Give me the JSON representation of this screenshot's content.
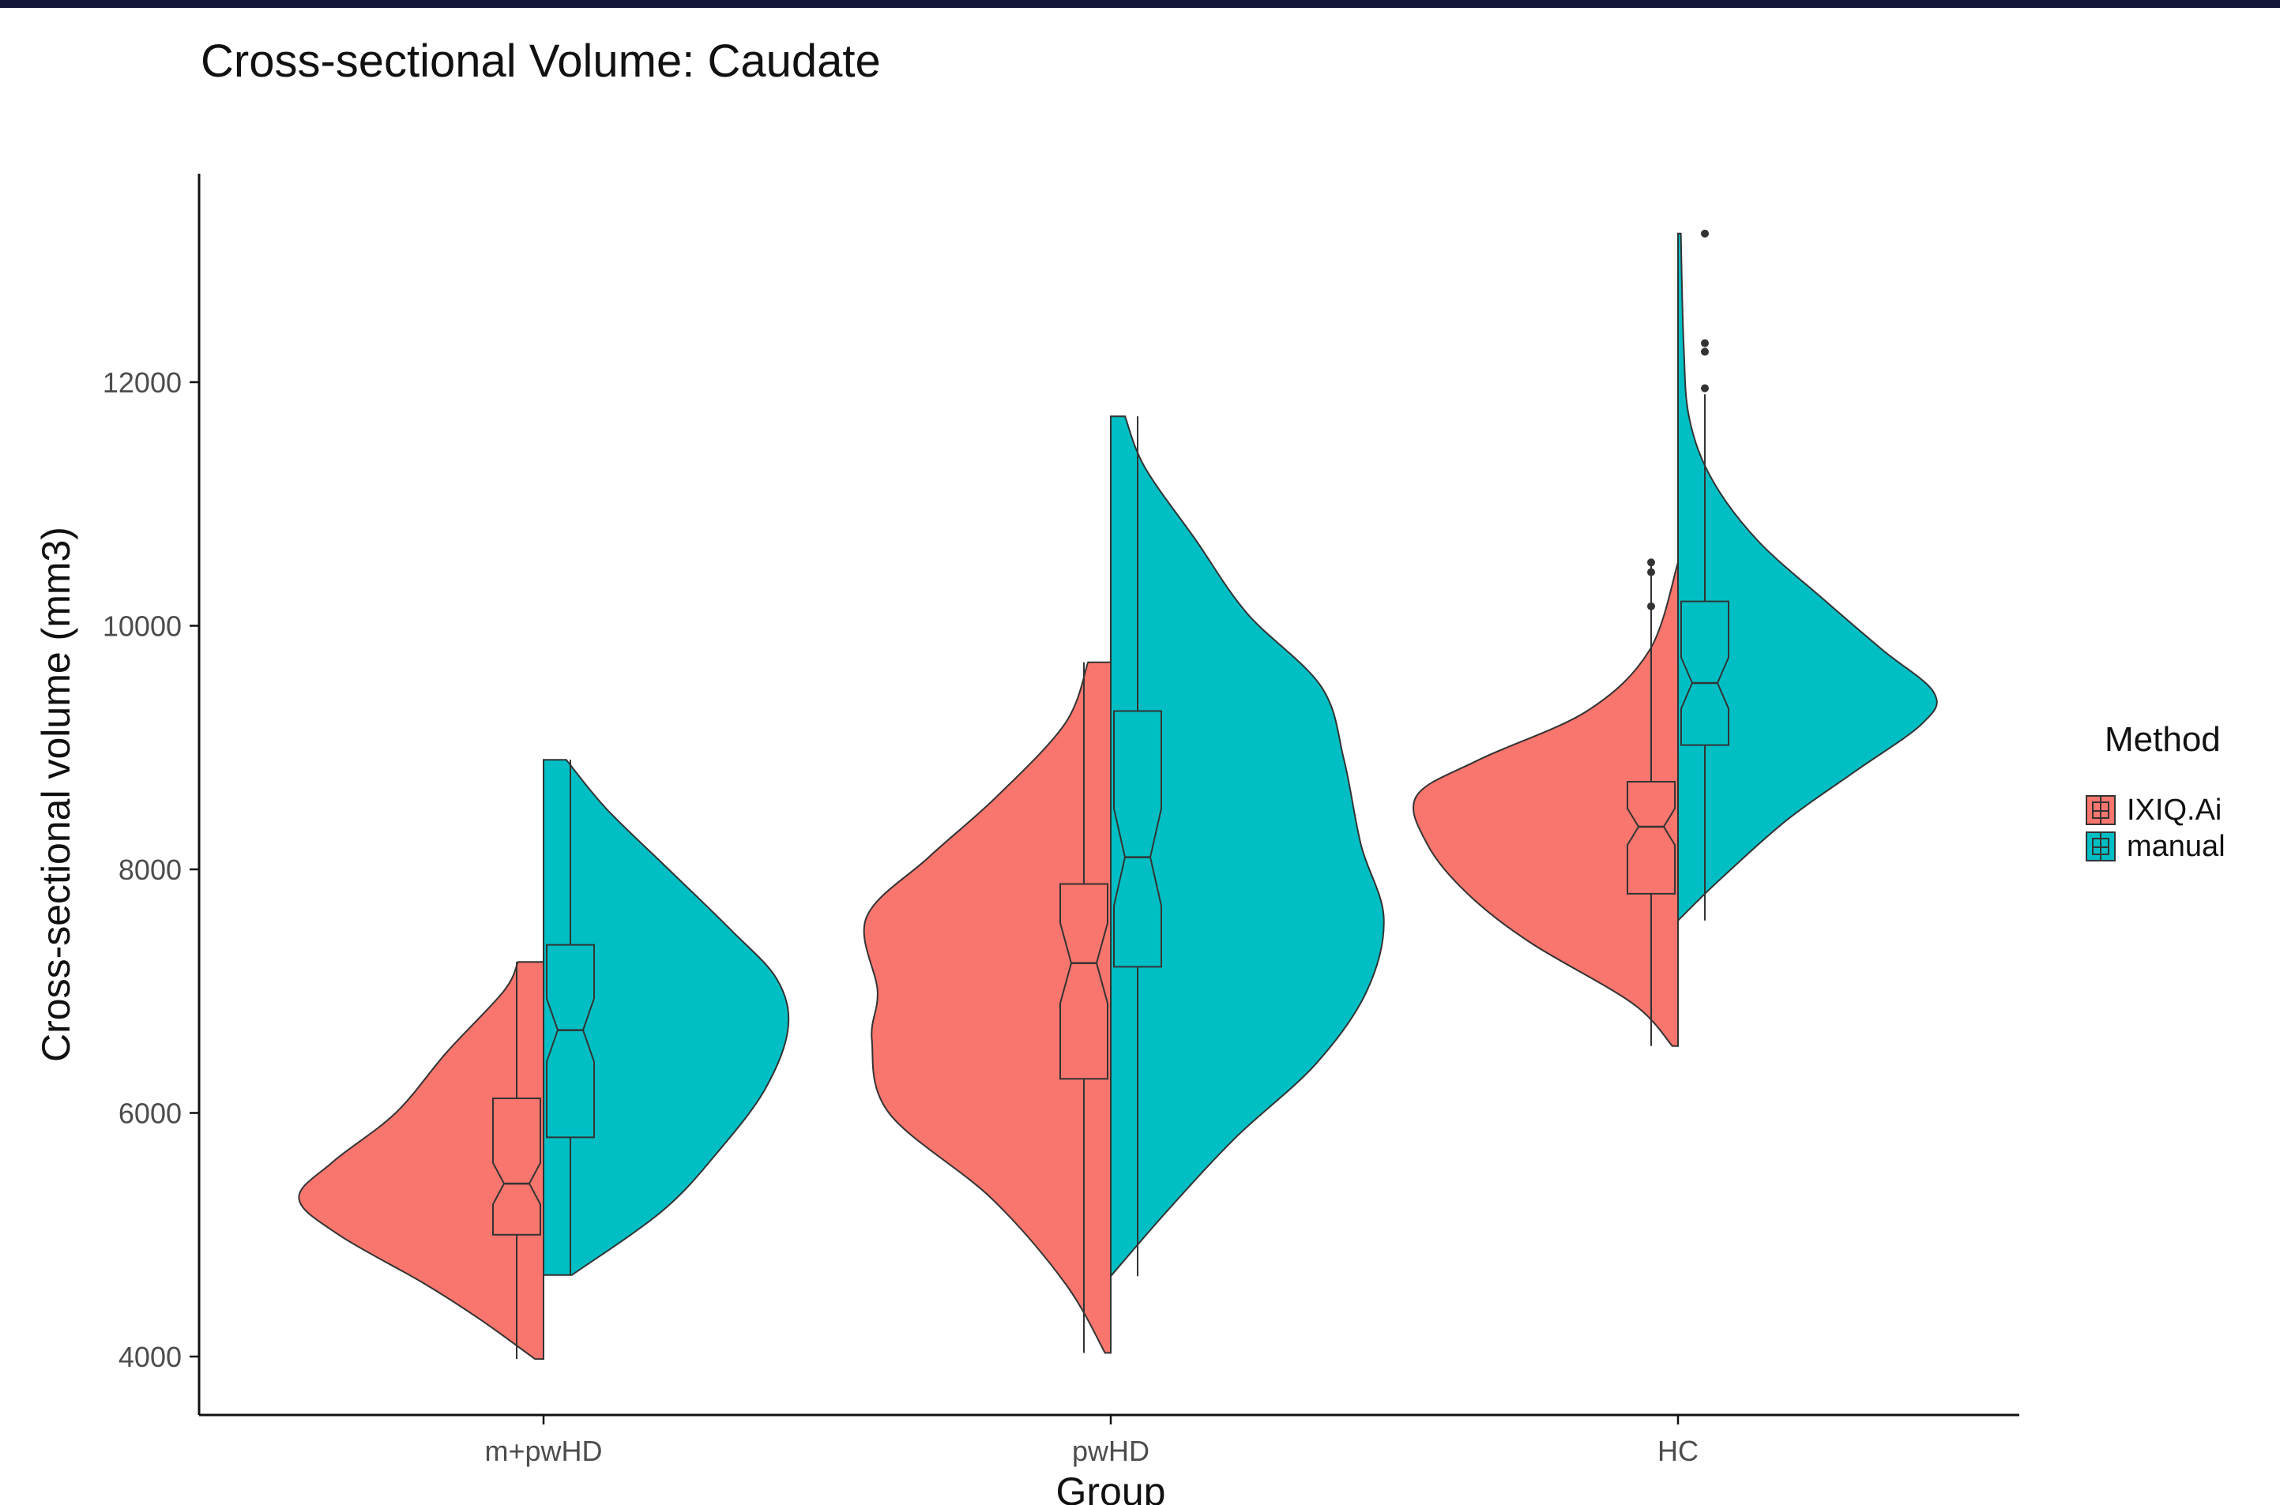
{
  "chart_data": {
    "type": "split-violin",
    "title": "Cross-sectional Volume: Caudate",
    "xlabel": "Group",
    "ylabel": "Cross-sectional volume (mm3)",
    "categories": [
      "m+pwHD",
      "pwHD",
      "HC"
    ],
    "ylim": [
      3800,
      13400
    ],
    "yticks": [
      4000,
      6000,
      8000,
      10000,
      12000
    ],
    "grid": false,
    "legend": {
      "title": "Method",
      "position": "right",
      "items": [
        "IXIQ.Ai",
        "manual"
      ]
    },
    "colors": {
      "IXIQ.Ai": "#f8766d",
      "manual": "#00bfc4",
      "outline": "#333333"
    },
    "series": [
      {
        "name": "IXIQ.Ai",
        "groups": [
          {
            "category": "m+pwHD",
            "min": 3980,
            "q1": 5000,
            "median": 5420,
            "q3": 6120,
            "max": 7240,
            "notch": [
              5250,
              5590
            ],
            "outliers": [],
            "density": [
              [
                3980,
                0.03
              ],
              [
                4300,
                0.22
              ],
              [
                4600,
                0.42
              ],
              [
                5000,
                0.72
              ],
              [
                5300,
                0.86
              ],
              [
                5600,
                0.74
              ],
              [
                6000,
                0.52
              ],
              [
                6500,
                0.34
              ],
              [
                7000,
                0.14
              ],
              [
                7240,
                0.09
              ]
            ]
          },
          {
            "category": "pwHD",
            "min": 4030,
            "q1": 6280,
            "median": 7230,
            "q3": 7880,
            "max": 9700,
            "notch": [
              6900,
              7560
            ],
            "outliers": [],
            "density": [
              [
                4030,
                0.02
              ],
              [
                4600,
                0.16
              ],
              [
                5300,
                0.42
              ],
              [
                6000,
                0.78
              ],
              [
                6600,
                0.84
              ],
              [
                7000,
                0.82
              ],
              [
                7600,
                0.86
              ],
              [
                8100,
                0.64
              ],
              [
                8600,
                0.4
              ],
              [
                9200,
                0.16
              ],
              [
                9700,
                0.08
              ]
            ]
          },
          {
            "category": "HC",
            "min": 6550,
            "q1": 7800,
            "median": 8350,
            "q3": 8720,
            "max": 10520,
            "notch": [
              8200,
              8500
            ],
            "outliers": [
              10160,
              10440,
              10520
            ],
            "density": [
              [
                6550,
                0.02
              ],
              [
                6900,
                0.16
              ],
              [
                7400,
                0.52
              ],
              [
                7800,
                0.74
              ],
              [
                8200,
                0.88
              ],
              [
                8600,
                0.92
              ],
              [
                8900,
                0.7
              ],
              [
                9300,
                0.32
              ],
              [
                9800,
                0.1
              ],
              [
                10520,
                0.0
              ]
            ]
          }
        ]
      },
      {
        "name": "manual",
        "groups": [
          {
            "category": "m+pwHD",
            "min": 4670,
            "q1": 5800,
            "median": 6680,
            "q3": 7380,
            "max": 8900,
            "notch": [
              6420,
              6940
            ],
            "outliers": [],
            "density": [
              [
                4670,
                0.1
              ],
              [
                5200,
                0.42
              ],
              [
                5700,
                0.62
              ],
              [
                6200,
                0.78
              ],
              [
                6700,
                0.86
              ],
              [
                7100,
                0.82
              ],
              [
                7500,
                0.66
              ],
              [
                8000,
                0.44
              ],
              [
                8500,
                0.22
              ],
              [
                8900,
                0.08
              ]
            ]
          },
          {
            "category": "pwHD",
            "min": 4660,
            "q1": 7200,
            "median": 8100,
            "q3": 9300,
            "max": 11720,
            "notch": [
              7700,
              8500
            ],
            "outliers": [],
            "density": [
              [
                4660,
                0.0
              ],
              [
                5200,
                0.2
              ],
              [
                5800,
                0.44
              ],
              [
                6400,
                0.72
              ],
              [
                7000,
                0.9
              ],
              [
                7600,
                0.96
              ],
              [
                8200,
                0.88
              ],
              [
                8900,
                0.82
              ],
              [
                9500,
                0.74
              ],
              [
                10100,
                0.48
              ],
              [
                10700,
                0.3
              ],
              [
                11300,
                0.12
              ],
              [
                11720,
                0.05
              ]
            ]
          },
          {
            "category": "HC",
            "min": 7580,
            "q1": 9020,
            "median": 9530,
            "q3": 10200,
            "max": 11900,
            "notch": [
              9320,
              9740
            ],
            "outliers": [
              11950,
              12250,
              12320,
              13220
            ],
            "density": [
              [
                7580,
                0.0
              ],
              [
                7900,
                0.14
              ],
              [
                8400,
                0.38
              ],
              [
                8800,
                0.62
              ],
              [
                9200,
                0.86
              ],
              [
                9450,
                0.9
              ],
              [
                9800,
                0.72
              ],
              [
                10200,
                0.52
              ],
              [
                10700,
                0.28
              ],
              [
                11200,
                0.12
              ],
              [
                11700,
                0.04
              ],
              [
                12300,
                0.02
              ],
              [
                13220,
                0.01
              ]
            ]
          }
        ]
      }
    ]
  }
}
